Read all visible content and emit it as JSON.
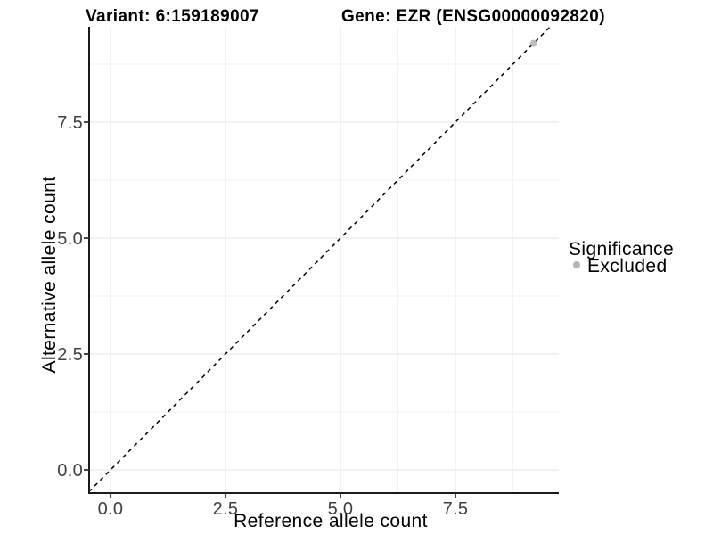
{
  "header": {
    "variant_title": "Variant: 6:159189007",
    "gene_title": "Gene: EZR (ENSG00000092820)"
  },
  "chart_data": {
    "type": "scatter",
    "title_left": "Variant: 6:159189007",
    "title_right": "Gene: EZR (ENSG00000092820)",
    "xlabel": "Reference allele count",
    "ylabel": "Alternative allele count",
    "x_ticks": [
      0,
      2.5,
      5,
      7.5
    ],
    "y_ticks": [
      0,
      2.5,
      5,
      7.5
    ],
    "x_tick_labels": [
      "0.0",
      "2.5",
      "5.0",
      "7.5"
    ],
    "y_tick_labels": [
      "0.0",
      "2.5",
      "5.0",
      "7.5"
    ],
    "xlim": [
      -0.47,
      9.8
    ],
    "ylim": [
      -0.5,
      9.55
    ],
    "grid": {
      "major": true,
      "minor": true,
      "major_color": "#e6e6e6",
      "minor_color": "#f2f2f2"
    },
    "reference_line": {
      "type": "identity y = x",
      "style": "dashed",
      "color": "#000000"
    },
    "series": [
      {
        "name": "Excluded",
        "color": "#b4b4b4",
        "marker": "circle",
        "points": [
          {
            "x": 9.2,
            "y": 9.2
          }
        ]
      }
    ],
    "legend": {
      "position": "right",
      "title": "Significance",
      "entries": [
        {
          "label": "Excluded",
          "color": "#b4b4b4",
          "marker": "circle"
        }
      ]
    }
  },
  "colors": {
    "background": "#ffffff",
    "axis_line": "#1a1a1a",
    "tick_label": "#404040"
  }
}
